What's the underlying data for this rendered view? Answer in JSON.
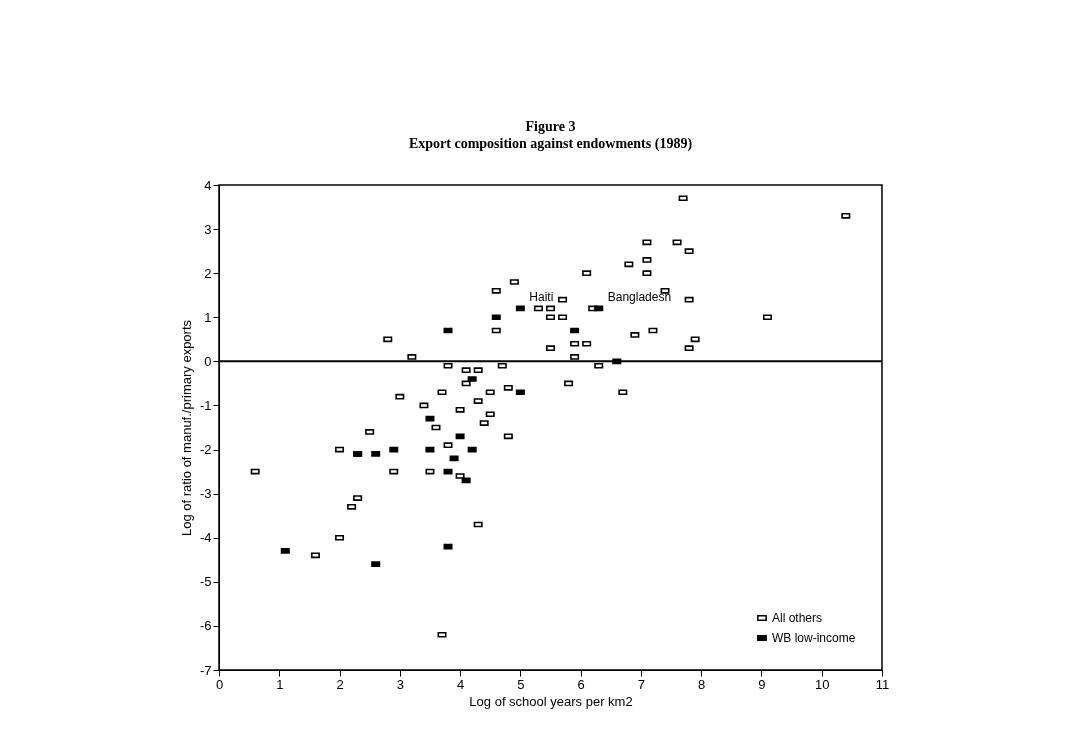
{
  "chart_data": {
    "type": "scatter",
    "title": "Figure 3",
    "subtitle": "Export composition against endowments (1989)",
    "xlabel": "Log of school years per km2",
    "ylabel": "Log of ratio of manuf./primary exports",
    "xlim": [
      0,
      11
    ],
    "xticks": [
      0,
      1,
      2,
      3,
      4,
      5,
      6,
      7,
      8,
      9,
      10,
      11
    ],
    "ylim": [
      -7,
      4
    ],
    "yticks": [
      -7,
      -6,
      -5,
      -4,
      -3,
      -2,
      -1,
      0,
      1,
      2,
      3,
      4
    ],
    "grid": false,
    "legend": "bottom right",
    "marker": "square",
    "ref_lines": [
      {
        "axis": "y",
        "value": 0,
        "color": "#000000"
      }
    ],
    "annotations": [
      {
        "text": "Haiti",
        "x": 5.0,
        "y": 1.2
      },
      {
        "text": "Bangladesh",
        "x": 6.3,
        "y": 1.2
      }
    ],
    "series": [
      {
        "name": "All others",
        "color": "#ffffff",
        "x": [
          0.6,
          2.8,
          3.2,
          3.0,
          2.0,
          2.5,
          2.3,
          2.9,
          2.3,
          2.2,
          2.0,
          1.6,
          3.4,
          3.6,
          3.7,
          3.8,
          4.1,
          4.3,
          4.1,
          4.0,
          4.3,
          4.5,
          4.8,
          4.7,
          4.5,
          4.4,
          4.8,
          3.8,
          3.5,
          4.0,
          4.3,
          3.7,
          4.6,
          4.9,
          4.6,
          5.3,
          5.5,
          5.5,
          5.5,
          7.7,
          10.4,
          7.1,
          7.6,
          7.8,
          6.8,
          7.1,
          7.1,
          6.1,
          7.4,
          7.8,
          5.7,
          6.2,
          5.7,
          9.1,
          7.2,
          6.9,
          7.9,
          7.8,
          5.9,
          6.1,
          5.9,
          6.3,
          5.8,
          6.7
        ],
        "values": [
          -2.5,
          0.5,
          0.1,
          -0.8,
          -2.0,
          -1.6,
          -2.1,
          -2.5,
          -3.1,
          -3.3,
          -4.0,
          -4.4,
          -1.0,
          -1.5,
          -0.7,
          -0.1,
          -0.2,
          -0.2,
          -0.5,
          -1.1,
          -0.9,
          -0.7,
          -0.6,
          -0.1,
          -1.2,
          -1.4,
          -1.7,
          -1.9,
          -2.5,
          -2.6,
          -3.7,
          -6.2,
          1.6,
          1.8,
          0.7,
          1.2,
          1.2,
          1.0,
          0.3,
          3.7,
          3.3,
          2.7,
          2.7,
          2.5,
          2.2,
          2.3,
          2.0,
          2.0,
          1.6,
          1.4,
          1.4,
          1.2,
          1.0,
          1.0,
          0.7,
          0.6,
          0.5,
          0.3,
          0.4,
          0.4,
          0.1,
          -0.1,
          -0.5,
          -0.7
        ]
      },
      {
        "name": "WB low-income",
        "color": "#000000",
        "x": [
          3.8,
          4.6,
          5.0,
          4.2,
          5.0,
          3.5,
          4.0,
          3.5,
          4.2,
          2.9,
          2.3,
          2.6,
          3.9,
          3.8,
          4.1,
          1.1,
          2.6,
          3.8,
          5.9,
          6.3,
          6.6
        ],
        "values": [
          0.7,
          1.0,
          1.2,
          -0.4,
          -0.7,
          -1.3,
          -1.7,
          -2.0,
          -2.0,
          -2.0,
          -2.1,
          -2.1,
          -2.2,
          -2.5,
          -2.7,
          -4.3,
          -4.6,
          -4.2,
          0.7,
          1.2,
          0.0
        ]
      }
    ]
  }
}
